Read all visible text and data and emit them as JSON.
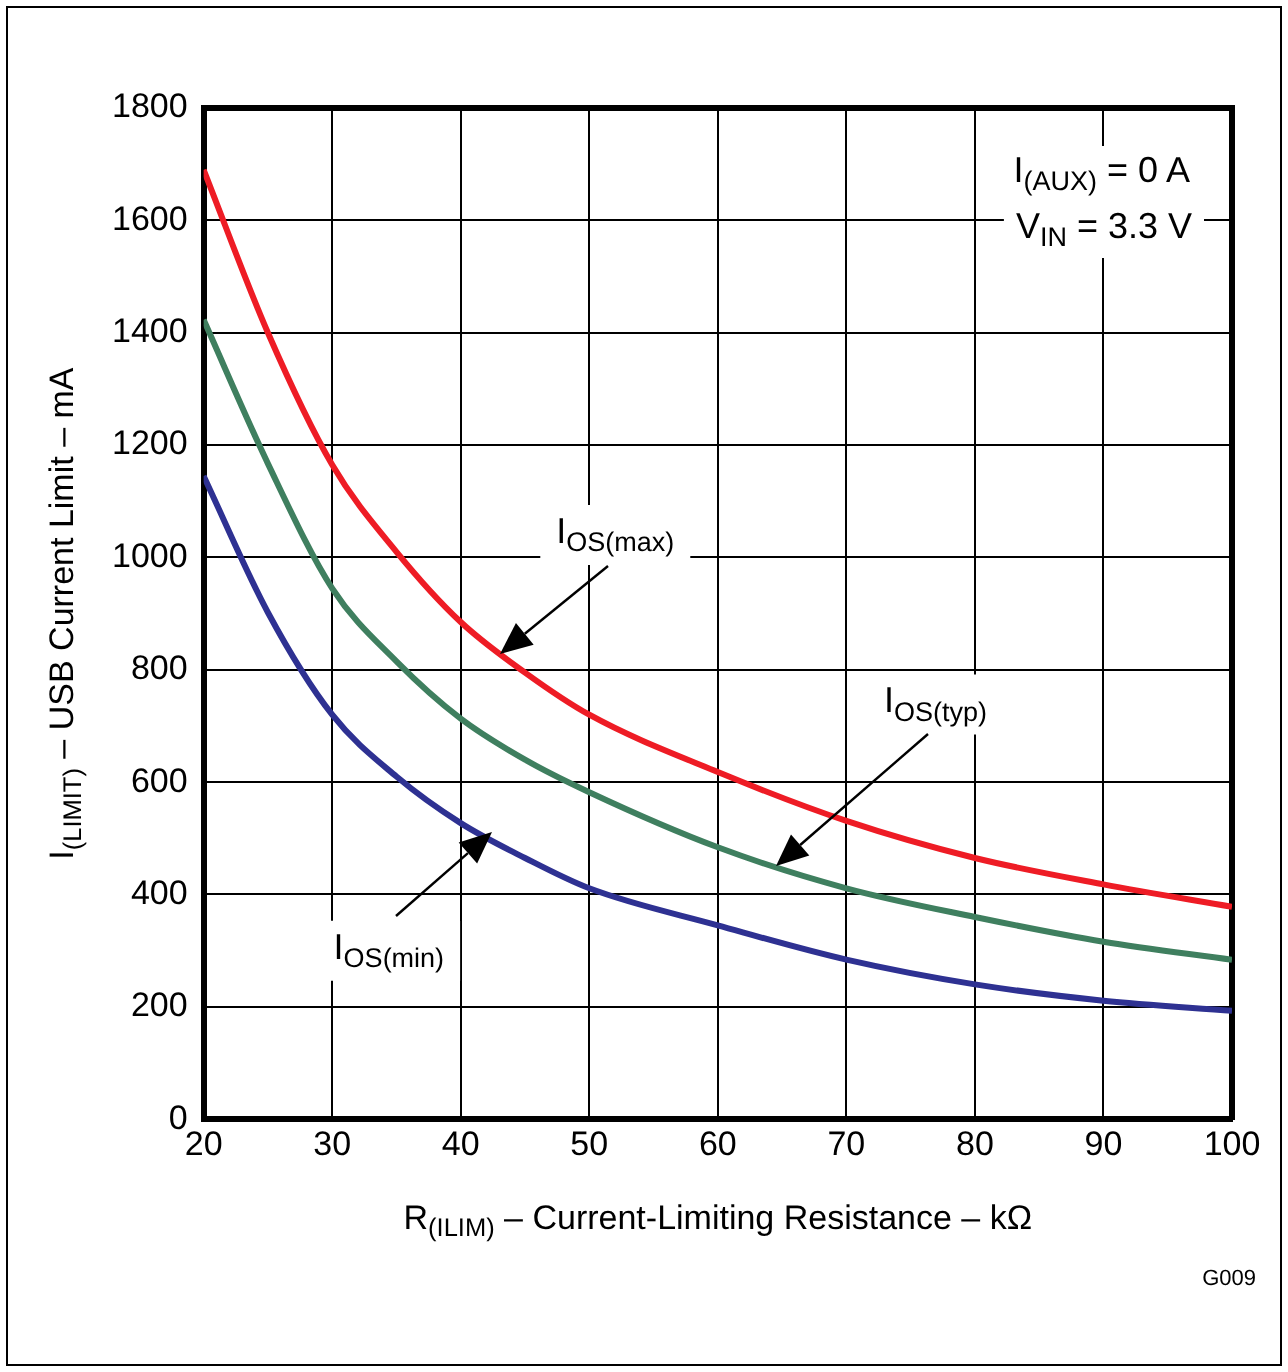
{
  "chart_data": {
    "type": "line",
    "xlabel": "R$_{(ILIM)}$ – Current-Limiting Resistance – kΩ",
    "ylabel": "I$_{(LIMIT)}$ – USB Current Limit – mA",
    "xlim": [
      20,
      100
    ],
    "xticks": [
      20,
      30,
      40,
      50,
      60,
      70,
      80,
      90,
      100
    ],
    "ylim": [
      0,
      1800
    ],
    "yticks": [
      0,
      200,
      400,
      600,
      800,
      1000,
      1200,
      1400,
      1600,
      1800
    ],
    "grid": true,
    "legend": false,
    "marker": "none",
    "line_style": "solid",
    "series": [
      {
        "color": "#ee1c25",
        "x": [
          20,
          25,
          30,
          35,
          40,
          45,
          50,
          60,
          70,
          80,
          90,
          100
        ],
        "values": [
          1690,
          1400,
          1165,
          1010,
          885,
          795,
          720,
          618,
          531,
          465,
          418,
          378
        ]
      },
      {
        "color": "#3f7f5f",
        "x": [
          20,
          25,
          30,
          35,
          40,
          45,
          50,
          60,
          70,
          80,
          90,
          100
        ],
        "values": [
          1423,
          1167,
          945,
          815,
          713,
          640,
          582,
          484,
          411,
          360,
          316,
          284
        ]
      },
      {
        "color": "#2e3192",
        "x": [
          20,
          25,
          30,
          35,
          40,
          45,
          50,
          60,
          70,
          80,
          90,
          100
        ],
        "values": [
          1145,
          902,
          720,
          610,
          527,
          465,
          411,
          345,
          284,
          240,
          211,
          193
        ]
      }
    ],
    "annotations": [
      "I$_{OS(max)}$",
      "I$_{OS(typ)}$",
      {
        "text": "I$_{OS(min)}$",
        "x": 42.5,
        "y": 510
      },
      "I$_{(AUX)}$ = 0 A",
      "V$_{IN}$ = 3.3 V",
      "G009"
    ]
  }
}
